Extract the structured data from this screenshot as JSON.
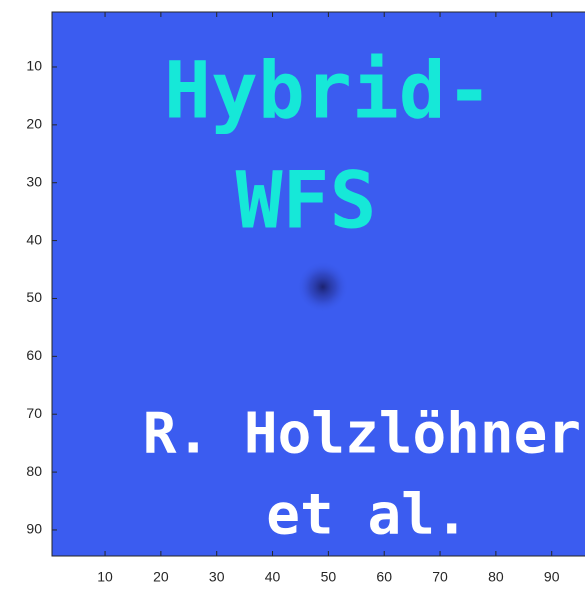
{
  "chart_data": {
    "type": "image",
    "xlim": [
      0.5,
      96.5
    ],
    "ylim": [
      0.5,
      94.5
    ],
    "xticks": [
      10,
      20,
      30,
      40,
      50,
      60,
      70,
      80,
      90
    ],
    "yticks": [
      10,
      20,
      30,
      40,
      50,
      60,
      70,
      80,
      90
    ],
    "y_reversed": true,
    "color": "#3b5cf0",
    "annotations": [
      {
        "text": "Hybrid-",
        "x": 50,
        "y": 15,
        "color": "#16e8d8"
      },
      {
        "text": "WFS",
        "x": 46,
        "y": 34,
        "color": "#16e8d8"
      },
      {
        "text": "R. Holzlöhner",
        "x": 56,
        "y": 74,
        "color": "#ffffff"
      },
      {
        "text": "et al.",
        "x": 57,
        "y": 88,
        "color": "#ffffff"
      }
    ]
  }
}
